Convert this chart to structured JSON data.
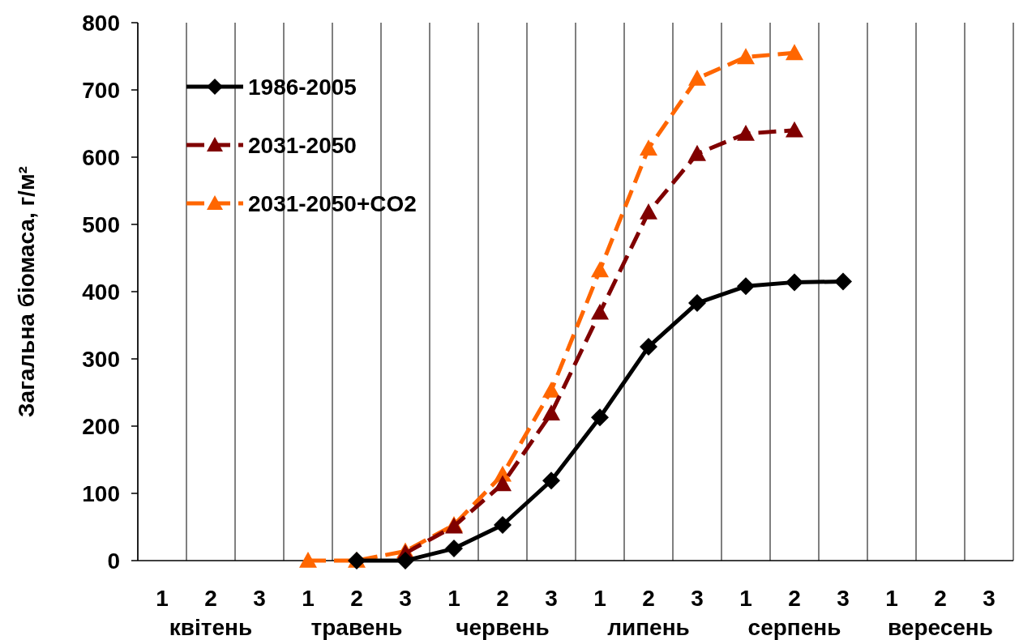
{
  "chart_data": {
    "type": "line",
    "ylabel": "Загальна біомаса, г/м²",
    "categories": [
      "1",
      "2",
      "3",
      "1",
      "2",
      "3",
      "1",
      "2",
      "3",
      "1",
      "2",
      "3",
      "1",
      "2",
      "3",
      "1",
      "2",
      "3"
    ],
    "annotations": [
      "квітень",
      "травень",
      "червень",
      "липень",
      "серпень",
      "вересень"
    ],
    "ylim": [
      0,
      800
    ],
    "yticks": [
      0,
      100,
      200,
      300,
      400,
      500,
      600,
      700,
      800
    ],
    "grid": "x",
    "legend": "top left",
    "series": [
      {
        "name": "1986-2005",
        "color": "#000000",
        "marker": "diamond",
        "line_style": "solid",
        "values": [
          null,
          null,
          null,
          null,
          0,
          0,
          18,
          53,
          119,
          213,
          318,
          383,
          408,
          414,
          415,
          null,
          null,
          null
        ]
      },
      {
        "name": "2031-2050",
        "color": "#800000",
        "marker": "triangle",
        "line_style": "dashed",
        "values": [
          null,
          null,
          null,
          null,
          null,
          11,
          51,
          114,
          219,
          369,
          518,
          605,
          635,
          640,
          null,
          null,
          null,
          null
        ]
      },
      {
        "name": "2031-2050+CO2",
        "color": "#ff6600",
        "marker": "triangle",
        "line_style": "dashed",
        "values": [
          null,
          null,
          null,
          0,
          0,
          14,
          53,
          128,
          253,
          432,
          613,
          717,
          749,
          755,
          null,
          null,
          null,
          null
        ]
      }
    ]
  }
}
